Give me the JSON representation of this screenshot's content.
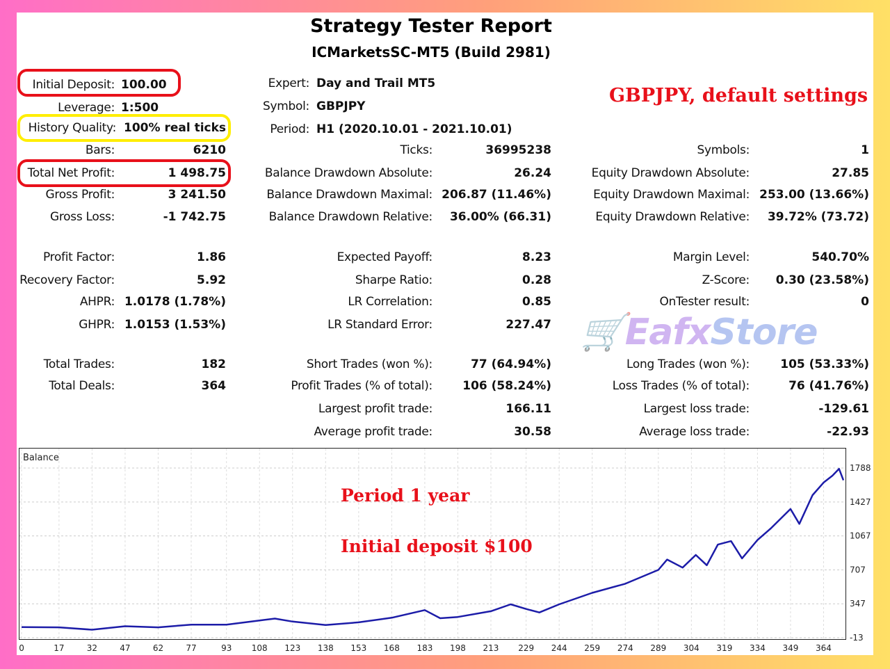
{
  "header": {
    "title": "Strategy Tester Report",
    "subtitle": "ICMarketsSC-MT5 (Build 2981)"
  },
  "annotations": {
    "settings": "GBPJPY, default settings",
    "period": "Period 1 year",
    "deposit": "Initial deposit $100"
  },
  "watermark": {
    "text_a": "Eafx",
    "text_b": "Store"
  },
  "highlight_colors": {
    "red": "#e8101a",
    "yellow": "#ffee00",
    "line": "#1c1ca8"
  },
  "info": {
    "initial_deposit": {
      "label": "Initial Deposit:",
      "value": "100.00"
    },
    "leverage": {
      "label": "Leverage:",
      "value": "1:500"
    },
    "history_quality": {
      "label": "History Quality:",
      "value": "100% real ticks"
    },
    "bars": {
      "label": "Bars:",
      "value": "6210"
    },
    "expert": {
      "label": "Expert:",
      "value": "Day and Trail MT5"
    },
    "symbol": {
      "label": "Symbol:",
      "value": "GBPJPY"
    },
    "period": {
      "label": "Period:",
      "value": "H1 (2020.10.01 - 2021.10.01)"
    },
    "ticks": {
      "label": "Ticks:",
      "value": "36995238"
    },
    "symbols": {
      "label": "Symbols:",
      "value": "1"
    }
  },
  "stats": {
    "total_net_profit": {
      "label": "Total Net Profit:",
      "value": "1 498.75"
    },
    "gross_profit": {
      "label": "Gross Profit:",
      "value": "3 241.50"
    },
    "gross_loss": {
      "label": "Gross Loss:",
      "value": "-1 742.75"
    },
    "bal_dd_abs": {
      "label": "Balance Drawdown Absolute:",
      "value": "26.24"
    },
    "bal_dd_max": {
      "label": "Balance Drawdown Maximal:",
      "value": "206.87 (11.46%)"
    },
    "bal_dd_rel": {
      "label": "Balance Drawdown Relative:",
      "value": "36.00% (66.31)"
    },
    "eq_dd_abs": {
      "label": "Equity Drawdown Absolute:",
      "value": "27.85"
    },
    "eq_dd_max": {
      "label": "Equity Drawdown Maximal:",
      "value": "253.00 (13.66%)"
    },
    "eq_dd_rel": {
      "label": "Equity Drawdown Relative:",
      "value": "39.72% (73.72)"
    },
    "profit_factor": {
      "label": "Profit Factor:",
      "value": "1.86"
    },
    "recovery_factor": {
      "label": "Recovery Factor:",
      "value": "5.92"
    },
    "ahpr": {
      "label": "AHPR:",
      "value": "1.0178 (1.78%)"
    },
    "ghpr": {
      "label": "GHPR:",
      "value": "1.0153 (1.53%)"
    },
    "expected_payoff": {
      "label": "Expected Payoff:",
      "value": "8.23"
    },
    "sharpe": {
      "label": "Sharpe Ratio:",
      "value": "0.28"
    },
    "lr_corr": {
      "label": "LR Correlation:",
      "value": "0.85"
    },
    "lr_err": {
      "label": "LR Standard Error:",
      "value": "227.47"
    },
    "margin_level": {
      "label": "Margin Level:",
      "value": "540.70%"
    },
    "zscore": {
      "label": "Z-Score:",
      "value": "0.30 (23.58%)"
    },
    "ontester": {
      "label": "OnTester result:",
      "value": "0"
    },
    "total_trades": {
      "label": "Total Trades:",
      "value": "182"
    },
    "total_deals": {
      "label": "Total Deals:",
      "value": "364"
    },
    "short_trades": {
      "label": "Short Trades (won %):",
      "value": "77 (64.94%)"
    },
    "profit_trades": {
      "label": "Profit Trades (% of total):",
      "value": "106 (58.24%)"
    },
    "largest_profit": {
      "label": "Largest profit trade:",
      "value": "166.11"
    },
    "avg_profit": {
      "label": "Average profit trade:",
      "value": "30.58"
    },
    "long_trades": {
      "label": "Long Trades (won %):",
      "value": "105 (53.33%)"
    },
    "loss_trades": {
      "label": "Loss Trades (% of total):",
      "value": "76 (41.76%)"
    },
    "largest_loss": {
      "label": "Largest loss trade:",
      "value": "-129.61"
    },
    "avg_loss": {
      "label": "Average loss trade:",
      "value": "-22.93"
    }
  },
  "chart_data": {
    "type": "line",
    "title": "Balance",
    "ylim": [
      -13,
      1788
    ],
    "xlim": [
      0,
      373
    ],
    "grid": true,
    "yticks": [
      -13,
      347,
      707,
      1067,
      1427,
      1788
    ],
    "xticks": [
      0,
      17,
      32,
      47,
      62,
      77,
      93,
      108,
      123,
      138,
      153,
      168,
      183,
      198,
      213,
      229,
      244,
      259,
      274,
      289,
      304,
      319,
      334,
      349,
      364
    ],
    "series": [
      {
        "color": "#1c1ca8",
        "x": [
          0,
          17,
          32,
          47,
          62,
          77,
          93,
          108,
          115,
          123,
          138,
          153,
          168,
          183,
          190,
          198,
          213,
          222,
          229,
          235,
          244,
          259,
          274,
          289,
          293,
          300,
          306,
          311,
          316,
          322,
          327,
          334,
          340,
          349,
          353,
          359,
          364,
          368,
          371,
          373
        ],
        "y": [
          100,
          97,
          72,
          109,
          97,
          126,
          126,
          170,
          190,
          158,
          121,
          150,
          199,
          280,
          194,
          207,
          268,
          341,
          292,
          255,
          341,
          463,
          560,
          707,
          817,
          731,
          865,
          756,
          975,
          1012,
          829,
          1024,
          1146,
          1353,
          1195,
          1500,
          1634,
          1707,
          1780,
          1658
        ]
      }
    ]
  }
}
